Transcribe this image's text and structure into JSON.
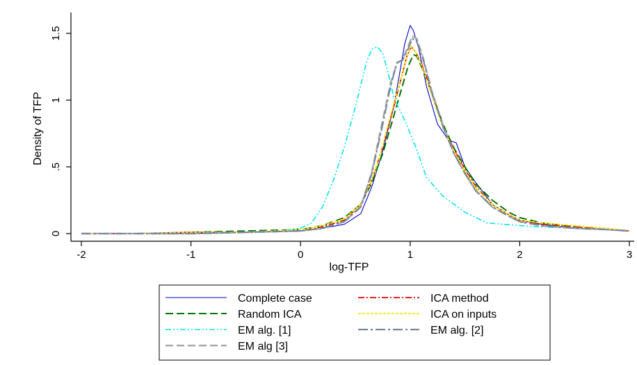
{
  "chart_data": {
    "type": "line",
    "title": "",
    "xlabel": "log-TFP",
    "ylabel": "Density of TFP",
    "xlim": [
      -2,
      3
    ],
    "ylim": [
      0,
      1.5
    ],
    "xticks": [
      -2,
      -1,
      0,
      1,
      2,
      3
    ],
    "xtick_labels": [
      "-2",
      "-1",
      "0",
      "1",
      "2",
      "3"
    ],
    "yticks": [
      0,
      0.5,
      1,
      1.5
    ],
    "ytick_labels": [
      "0",
      ".5",
      "1",
      "1.5"
    ],
    "grid": false,
    "legend_placement": "bottom",
    "series": [
      {
        "name": "Complete case",
        "color": "#0000cc",
        "dash": "solid",
        "x": [
          -2,
          -1.5,
          -1,
          -0.5,
          0,
          0.2,
          0.4,
          0.55,
          0.65,
          0.75,
          0.85,
          0.9,
          0.95,
          1.0,
          1.03,
          1.08,
          1.15,
          1.25,
          1.35,
          1.42,
          1.5,
          1.6,
          1.75,
          1.9,
          2.0,
          2.2,
          2.5,
          2.8,
          3.0
        ],
        "y": [
          0.0,
          0.0,
          0.0,
          0.01,
          0.02,
          0.04,
          0.07,
          0.15,
          0.35,
          0.62,
          0.95,
          1.18,
          1.42,
          1.56,
          1.52,
          1.38,
          1.1,
          0.82,
          0.7,
          0.68,
          0.5,
          0.38,
          0.22,
          0.14,
          0.1,
          0.07,
          0.04,
          0.03,
          0.02
        ]
      },
      {
        "name": "ICA method",
        "color": "#e00000",
        "dash": "dashdot",
        "x": [
          -2,
          -1.5,
          -1,
          -0.5,
          0,
          0.2,
          0.4,
          0.55,
          0.65,
          0.75,
          0.85,
          0.92,
          0.97,
          1.01,
          1.05,
          1.1,
          1.2,
          1.3,
          1.4,
          1.5,
          1.6,
          1.75,
          1.9,
          2.0,
          2.2,
          2.5,
          2.8,
          3.0
        ],
        "y": [
          0.0,
          0.0,
          0.01,
          0.01,
          0.02,
          0.05,
          0.1,
          0.22,
          0.4,
          0.65,
          0.95,
          1.17,
          1.33,
          1.4,
          1.36,
          1.28,
          1.05,
          0.8,
          0.63,
          0.48,
          0.35,
          0.22,
          0.14,
          0.1,
          0.07,
          0.05,
          0.03,
          0.02
        ]
      },
      {
        "name": "Random ICA",
        "color": "#007700",
        "dash": "longdash",
        "x": [
          -2,
          -1.5,
          -1,
          -0.5,
          0,
          0.2,
          0.4,
          0.55,
          0.65,
          0.75,
          0.85,
          0.92,
          0.98,
          1.03,
          1.06,
          1.12,
          1.2,
          1.3,
          1.4,
          1.5,
          1.6,
          1.75,
          1.9,
          2.0,
          2.2,
          2.5,
          2.8,
          3.0
        ],
        "y": [
          0.0,
          0.0,
          0.01,
          0.02,
          0.03,
          0.06,
          0.12,
          0.22,
          0.38,
          0.6,
          0.88,
          1.08,
          1.25,
          1.34,
          1.33,
          1.22,
          1.05,
          0.82,
          0.64,
          0.5,
          0.37,
          0.25,
          0.16,
          0.12,
          0.08,
          0.05,
          0.03,
          0.02
        ]
      },
      {
        "name": "ICA on inputs",
        "color": "#ffe600",
        "dash": "shortdash",
        "x": [
          -2,
          -1.5,
          -1,
          -0.5,
          0,
          0.2,
          0.4,
          0.55,
          0.65,
          0.75,
          0.85,
          0.92,
          0.97,
          1.01,
          1.05,
          1.1,
          1.2,
          1.3,
          1.4,
          1.5,
          1.6,
          1.75,
          1.9,
          2.0,
          2.2,
          2.5,
          2.8,
          3.0
        ],
        "y": [
          0.0,
          0.0,
          0.01,
          0.01,
          0.03,
          0.06,
          0.11,
          0.22,
          0.4,
          0.66,
          0.97,
          1.18,
          1.33,
          1.4,
          1.36,
          1.27,
          1.03,
          0.79,
          0.62,
          0.47,
          0.34,
          0.22,
          0.14,
          0.1,
          0.08,
          0.06,
          0.04,
          0.02
        ]
      },
      {
        "name": "EM alg. [1]",
        "color": "#00e5ee",
        "dash": "dashdotdot",
        "x": [
          -2,
          -1.5,
          -1,
          -0.5,
          -0.2,
          0,
          0.1,
          0.2,
          0.3,
          0.4,
          0.5,
          0.6,
          0.65,
          0.7,
          0.75,
          0.8,
          0.85,
          0.95,
          1.05,
          1.15,
          1.3,
          1.5,
          1.7,
          1.85,
          2.0,
          2.2,
          2.5,
          2.8,
          3.0
        ],
        "y": [
          0.0,
          0.0,
          0.01,
          0.01,
          0.02,
          0.04,
          0.08,
          0.2,
          0.4,
          0.65,
          0.95,
          1.28,
          1.38,
          1.4,
          1.35,
          1.2,
          1.02,
          0.85,
          0.65,
          0.42,
          0.28,
          0.16,
          0.08,
          0.07,
          0.06,
          0.05,
          0.04,
          0.03,
          0.02
        ]
      },
      {
        "name": "EM alg. [2]",
        "color": "#778899",
        "dash": "longdashdot",
        "x": [
          -2,
          -1.5,
          -1,
          -0.5,
          0,
          0.2,
          0.4,
          0.55,
          0.65,
          0.75,
          0.82,
          0.88,
          0.93,
          0.98,
          1.02,
          1.06,
          1.12,
          1.2,
          1.3,
          1.4,
          1.5,
          1.6,
          1.75,
          1.9,
          2.0,
          2.2,
          2.5,
          2.8,
          3.0
        ],
        "y": [
          0.0,
          0.0,
          0.0,
          0.01,
          0.02,
          0.04,
          0.09,
          0.2,
          0.45,
          0.82,
          1.1,
          1.28,
          1.3,
          1.38,
          1.46,
          1.44,
          1.3,
          1.05,
          0.8,
          0.6,
          0.45,
          0.32,
          0.2,
          0.13,
          0.09,
          0.06,
          0.04,
          0.03,
          0.02
        ]
      },
      {
        "name": "EM alg [3]",
        "color": "#a8a8a8",
        "dash": "longdash",
        "x": [
          -2,
          -1.5,
          -1,
          -0.5,
          0,
          0.2,
          0.4,
          0.55,
          0.65,
          0.75,
          0.82,
          0.88,
          0.93,
          0.98,
          1.02,
          1.06,
          1.12,
          1.2,
          1.3,
          1.4,
          1.5,
          1.6,
          1.75,
          1.9,
          2.0,
          2.2,
          2.5,
          2.8,
          3.0
        ],
        "y": [
          0.0,
          0.0,
          0.0,
          0.01,
          0.02,
          0.04,
          0.09,
          0.2,
          0.46,
          0.85,
          1.12,
          1.28,
          1.3,
          1.4,
          1.48,
          1.46,
          1.31,
          1.06,
          0.81,
          0.6,
          0.45,
          0.32,
          0.2,
          0.13,
          0.09,
          0.06,
          0.04,
          0.03,
          0.02
        ]
      }
    ]
  }
}
